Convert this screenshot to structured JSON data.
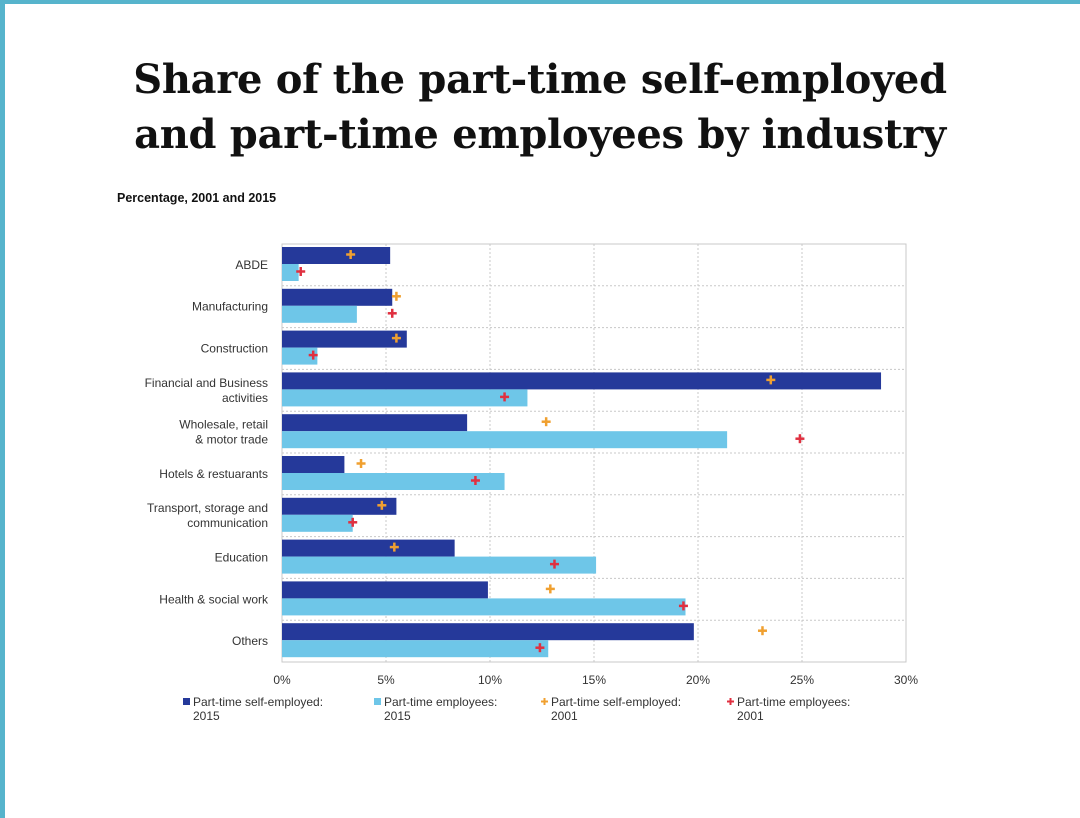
{
  "slide": {
    "title_line1": "Share of the part-time self-employed",
    "title_line2": "and part-time employees by industry"
  },
  "chart_data": {
    "type": "bar",
    "orientation": "horizontal",
    "subtitle": "Percentage, 2001 and 2015",
    "categories": [
      [
        "ABDE"
      ],
      [
        "Manufacturing"
      ],
      [
        "Construction"
      ],
      [
        "Financial and Business",
        "activities"
      ],
      [
        "Wholesale, retail",
        "& motor trade"
      ],
      [
        "Hotels & restuarants"
      ],
      [
        "Transport, storage and",
        "communication"
      ],
      [
        "Education"
      ],
      [
        "Health & social work"
      ],
      [
        "Others"
      ]
    ],
    "series": [
      {
        "name": [
          "Part-time self-employed:",
          "2015"
        ],
        "mark": "bar",
        "color": "#25399a",
        "values": [
          5.2,
          5.3,
          6.0,
          28.8,
          8.9,
          3.0,
          5.5,
          8.3,
          9.9,
          19.8
        ]
      },
      {
        "name": [
          "Part-time employees:",
          "2015"
        ],
        "mark": "bar",
        "color": "#6ec6e8",
        "values": [
          0.8,
          3.6,
          1.7,
          11.8,
          21.4,
          10.7,
          3.4,
          15.1,
          19.4,
          12.8
        ]
      },
      {
        "name": [
          "Part-time self-employed:",
          "2001"
        ],
        "mark": "cross",
        "color": "#f0a030",
        "values": [
          3.3,
          5.5,
          5.5,
          23.5,
          12.7,
          3.8,
          4.8,
          5.4,
          12.9,
          23.1
        ]
      },
      {
        "name": [
          "Part-time employees:",
          "2001"
        ],
        "mark": "cross",
        "color": "#e03040",
        "values": [
          0.9,
          5.3,
          1.5,
          10.7,
          24.9,
          9.3,
          3.4,
          13.1,
          19.3,
          12.4
        ]
      }
    ],
    "xlim": [
      0,
      30
    ],
    "xticks": [
      0,
      5,
      10,
      15,
      20,
      25,
      30
    ],
    "xtick_labels": [
      "0%",
      "5%",
      "10%",
      "15%",
      "20%",
      "25%",
      "30%"
    ],
    "grid": true,
    "legend_position": "bottom"
  }
}
